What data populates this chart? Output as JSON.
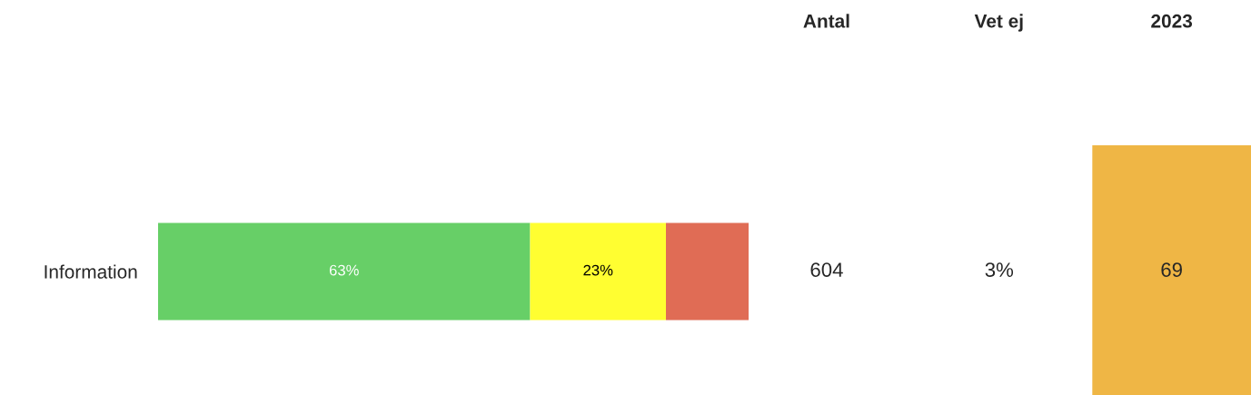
{
  "chart_data": [
    {
      "type": "bar",
      "orientation": "horizontal",
      "stacked": true,
      "categories": [
        "Information"
      ],
      "series": [
        {
          "color": "#67cf67",
          "values": [
            63
          ],
          "value_labels": [
            "63%"
          ]
        },
        {
          "color": "#fffe31",
          "values": [
            23
          ],
          "value_labels": [
            "23%"
          ]
        },
        {
          "color": "#e06c55",
          "values": [
            14
          ],
          "value_labels": [
            null
          ]
        }
      ],
      "xlim": [
        0,
        100
      ],
      "tick_labels": "y",
      "grid": false,
      "legend": false
    },
    {
      "type": "other",
      "categories": [
        "Antal",
        "Vet ej",
        "2023"
      ],
      "value_labels": [
        "604",
        "3%",
        "69"
      ],
      "colors": [
        null,
        null,
        "#efb645"
      ]
    }
  ]
}
